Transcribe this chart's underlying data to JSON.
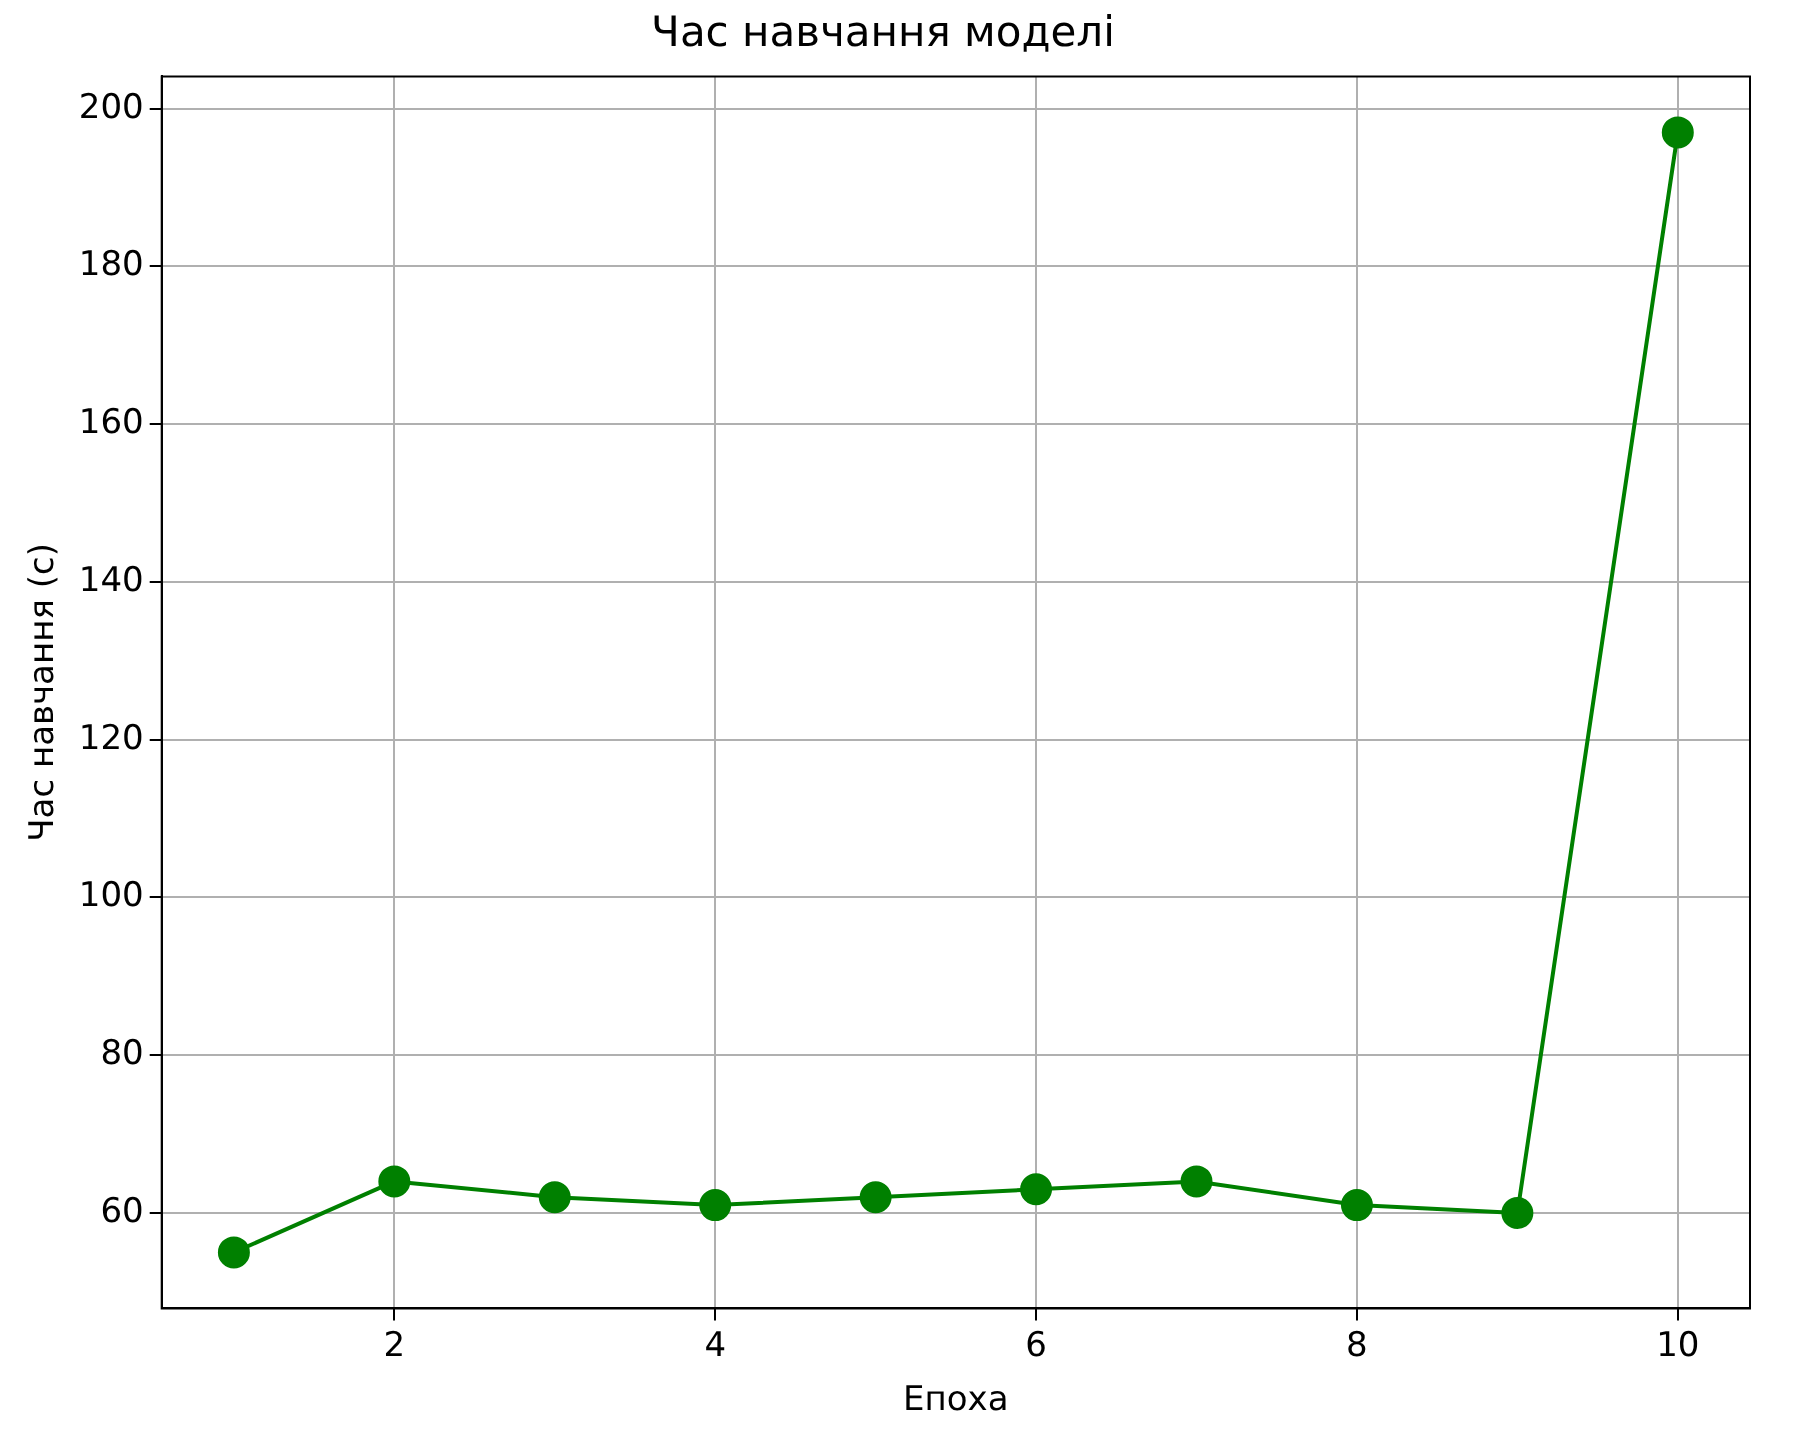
{
  "chart_data": {
    "type": "line",
    "title": "Час навчання моделі",
    "xlabel": "Епоха",
    "ylabel": "Час навчання (с)",
    "x": [
      1,
      2,
      3,
      4,
      5,
      6,
      7,
      8,
      9,
      10
    ],
    "series": [
      {
        "color": "#008000",
        "values": [
          55,
          64,
          62,
          61,
          62,
          63,
          64,
          61,
          60,
          197
        ]
      }
    ],
    "xlim": [
      0.55,
      10.45
    ],
    "xticks": [
      2,
      4,
      6,
      8,
      10
    ],
    "ylim": [
      47.9,
      204.1
    ],
    "yticks": [
      60,
      80,
      100,
      120,
      140,
      160,
      180,
      200
    ],
    "grid": true,
    "marker": "circle",
    "line_style": "solid",
    "legend": false
  }
}
